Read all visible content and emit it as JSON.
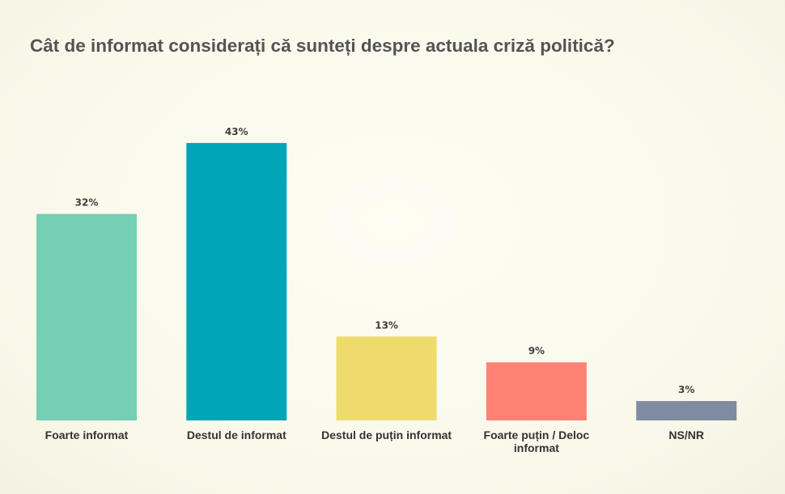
{
  "chart_data": {
    "type": "bar",
    "title": "Cât de informat considerați că sunteți despre actuala criză politică?",
    "categories": [
      [
        "Foarte informat"
      ],
      [
        "Destul de informat"
      ],
      [
        "Destul de puțin informat"
      ],
      [
        "Foarte puțin / Deloc",
        "informat"
      ],
      [
        "NS/NR"
      ]
    ],
    "values": [
      32,
      43,
      13,
      9,
      3
    ],
    "data_labels": [
      "32%",
      "43%",
      "13%",
      "9%",
      "3%"
    ],
    "colors": [
      "#74cfb4",
      "#00a5b8",
      "#efdb6c",
      "#ff8275",
      "#7f8ba0"
    ],
    "unit": "%",
    "ylim": [
      0,
      45
    ],
    "grid": false,
    "legend": "none"
  }
}
